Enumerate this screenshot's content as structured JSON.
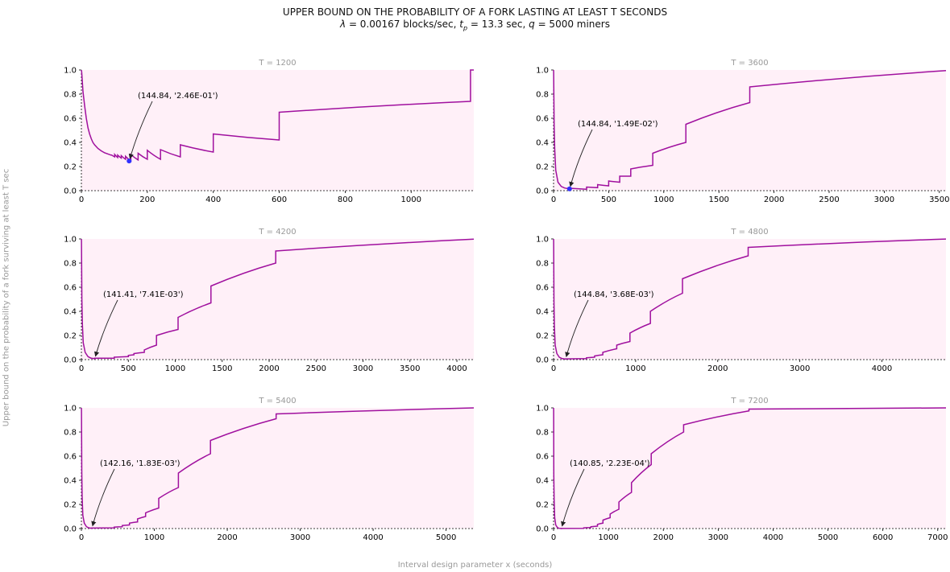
{
  "figure": {
    "title_line1": "UPPER BOUND ON THE PROBABILITY OF A FORK LASTING AT LEAST T SECONDS",
    "title_line2": {
      "lambda_sym": "λ",
      "lambda_text": " =  0.00167 blocks/sec, ",
      "tp_sym": "t",
      "tp_sub": "p",
      "tp_text": " =  13.3 sec, ",
      "q_sym": "q",
      "q_text": " =  5000 miners"
    },
    "ylabel": "Upper bound on the probability of a fork surviving at least T sec",
    "xlabel": "Interval design parameter x (seconds)"
  },
  "colors": {
    "line": "#a0109e",
    "plot_bg": "#fff0f8",
    "marker": "#3030ff",
    "title_gray": "#999999",
    "arrow": "#222222"
  },
  "chart_data": [
    {
      "type": "line",
      "title": "T = 1200",
      "xlim": [
        0,
        1190
      ],
      "ylim": [
        0,
        1.0
      ],
      "xticks": [
        0,
        200,
        400,
        600,
        800,
        1000
      ],
      "yticks": [
        "0.0",
        "0.2",
        "0.4",
        "0.6",
        "0.8",
        "1.0"
      ],
      "annotation": {
        "text": "(144.84, '2.46E-01')",
        "x": 144.84,
        "y": 0.246,
        "marker": true
      },
      "min_point": [
        144.84,
        0.246
      ],
      "series_points": [
        [
          1,
          0.98
        ],
        [
          5,
          0.82
        ],
        [
          10,
          0.7
        ],
        [
          15,
          0.6
        ],
        [
          20,
          0.52
        ],
        [
          25,
          0.47
        ],
        [
          30,
          0.43
        ],
        [
          35,
          0.4
        ],
        [
          40,
          0.38
        ],
        [
          50,
          0.35
        ],
        [
          60,
          0.33
        ],
        [
          70,
          0.315
        ],
        [
          80,
          0.305
        ],
        [
          90,
          0.295
        ]
      ],
      "segments": [
        {
          "x0": 92,
          "x1": 101,
          "y0": 0.295,
          "y1": 0.28
        },
        {
          "x0": 101,
          "x1": 110,
          "y0": 0.3,
          "y1": 0.275
        },
        {
          "x0": 110,
          "x1": 121,
          "y0": 0.295,
          "y1": 0.27
        },
        {
          "x0": 121,
          "x1": 134,
          "y0": 0.29,
          "y1": 0.26
        },
        {
          "x0": 134,
          "x1": 150,
          "y0": 0.285,
          "y1": 0.246
        },
        {
          "x0": 150,
          "x1": 172,
          "y0": 0.3,
          "y1": 0.255
        },
        {
          "x0": 172,
          "x1": 200,
          "y0": 0.31,
          "y1": 0.26
        },
        {
          "x0": 200,
          "x1": 240,
          "y0": 0.335,
          "y1": 0.26
        },
        {
          "x0": 240,
          "x1": 300,
          "y0": 0.34,
          "y1": 0.28
        },
        {
          "x0": 300,
          "x1": 400,
          "y0": 0.38,
          "y1": 0.32
        },
        {
          "x0": 400,
          "x1": 600,
          "y0": 0.47,
          "y1": 0.42
        },
        {
          "x0": 600,
          "x1": 1180,
          "y0": 0.65,
          "y1": 0.74
        },
        {
          "x0": 1180,
          "x1": 1190,
          "y0": 1.0,
          "y1": 1.0
        }
      ]
    },
    {
      "type": "line",
      "title": "T = 3600",
      "xlim": [
        0,
        3560
      ],
      "ylim": [
        0,
        1.0
      ],
      "xticks": [
        0,
        500,
        1000,
        1500,
        2000,
        2500,
        3000,
        3500
      ],
      "yticks": [
        "0.0",
        "0.2",
        "0.4",
        "0.6",
        "0.8",
        "1.0"
      ],
      "annotation": {
        "text": "(144.84, '1.49E-02')",
        "x": 144.84,
        "y": 0.0149,
        "marker": true
      },
      "min_point": [
        144.84,
        0.0149
      ],
      "series_points": [
        [
          1,
          0.98
        ],
        [
          5,
          0.55
        ],
        [
          10,
          0.35
        ],
        [
          20,
          0.17
        ],
        [
          40,
          0.07
        ],
        [
          70,
          0.035
        ],
        [
          100,
          0.022
        ],
        [
          144.84,
          0.0149
        ]
      ],
      "segments": [
        {
          "x0": 145,
          "x1": 300,
          "y0": 0.02,
          "y1": 0.012
        },
        {
          "x0": 300,
          "x1": 400,
          "y0": 0.03,
          "y1": 0.025
        },
        {
          "x0": 400,
          "x1": 500,
          "y0": 0.05,
          "y1": 0.04
        },
        {
          "x0": 500,
          "x1": 600,
          "y0": 0.08,
          "y1": 0.07
        },
        {
          "x0": 600,
          "x1": 700,
          "y0": 0.12,
          "y1": 0.12
        },
        {
          "x0": 700,
          "x1": 900,
          "y0": 0.18,
          "y1": 0.21
        },
        {
          "x0": 900,
          "x1": 1200,
          "y0": 0.31,
          "y1": 0.4
        },
        {
          "x0": 1200,
          "x1": 1780,
          "y0": 0.55,
          "y1": 0.73
        },
        {
          "x0": 1780,
          "x1": 3560,
          "y0": 0.86,
          "y1": 0.995
        }
      ]
    },
    {
      "type": "line",
      "title": "T = 4200",
      "xlim": [
        0,
        4180
      ],
      "ylim": [
        0,
        1.0
      ],
      "xticks": [
        0,
        500,
        1000,
        1500,
        2000,
        2500,
        3000,
        3500,
        4000
      ],
      "yticks": [
        "0.0",
        "0.2",
        "0.4",
        "0.6",
        "0.8",
        "1.0"
      ],
      "annotation": {
        "text": "(141.41, '7.41E-03')",
        "x": 141.41,
        "y": 0.00741,
        "marker": false
      },
      "min_point": [
        141.41,
        0.00741
      ],
      "series_points": [
        [
          1,
          0.98
        ],
        [
          5,
          0.5
        ],
        [
          10,
          0.3
        ],
        [
          20,
          0.14
        ],
        [
          40,
          0.06
        ],
        [
          70,
          0.025
        ],
        [
          100,
          0.013
        ],
        [
          141.41,
          0.0074
        ]
      ],
      "segments": [
        {
          "x0": 141,
          "x1": 350,
          "y0": 0.012,
          "y1": 0.012
        },
        {
          "x0": 350,
          "x1": 500,
          "y0": 0.02,
          "y1": 0.025
        },
        {
          "x0": 500,
          "x1": 560,
          "y0": 0.035,
          "y1": 0.04
        },
        {
          "x0": 560,
          "x1": 670,
          "y0": 0.05,
          "y1": 0.06
        },
        {
          "x0": 670,
          "x1": 800,
          "y0": 0.08,
          "y1": 0.12
        },
        {
          "x0": 800,
          "x1": 1030,
          "y0": 0.2,
          "y1": 0.25
        },
        {
          "x0": 1030,
          "x1": 1380,
          "y0": 0.35,
          "y1": 0.47
        },
        {
          "x0": 1380,
          "x1": 2070,
          "y0": 0.61,
          "y1": 0.8
        },
        {
          "x0": 2070,
          "x1": 4180,
          "y0": 0.9,
          "y1": 0.998
        }
      ]
    },
    {
      "type": "line",
      "title": "T = 4800",
      "xlim": [
        0,
        4780
      ],
      "ylim": [
        0,
        1.0
      ],
      "xticks": [
        0,
        1000,
        2000,
        3000,
        4000
      ],
      "yticks": [
        "0.0",
        "0.2",
        "0.4",
        "0.6",
        "0.8",
        "1.0"
      ],
      "annotation": {
        "text": "(144.84, '3.68E-03')",
        "x": 144.84,
        "y": 0.00368,
        "marker": false
      },
      "min_point": [
        144.84,
        0.00368
      ],
      "series_points": [
        [
          1,
          0.98
        ],
        [
          5,
          0.48
        ],
        [
          10,
          0.28
        ],
        [
          20,
          0.12
        ],
        [
          40,
          0.05
        ],
        [
          70,
          0.02
        ],
        [
          100,
          0.009
        ],
        [
          144.84,
          0.0037
        ]
      ],
      "segments": [
        {
          "x0": 145,
          "x1": 400,
          "y0": 0.006,
          "y1": 0.008
        },
        {
          "x0": 400,
          "x1": 500,
          "y0": 0.015,
          "y1": 0.02
        },
        {
          "x0": 500,
          "x1": 600,
          "y0": 0.03,
          "y1": 0.04
        },
        {
          "x0": 600,
          "x1": 770,
          "y0": 0.06,
          "y1": 0.09
        },
        {
          "x0": 770,
          "x1": 930,
          "y0": 0.12,
          "y1": 0.15
        },
        {
          "x0": 930,
          "x1": 1180,
          "y0": 0.22,
          "y1": 0.3
        },
        {
          "x0": 1180,
          "x1": 1570,
          "y0": 0.4,
          "y1": 0.55
        },
        {
          "x0": 1570,
          "x1": 2370,
          "y0": 0.67,
          "y1": 0.86
        },
        {
          "x0": 2370,
          "x1": 4780,
          "y0": 0.93,
          "y1": 0.999
        }
      ]
    },
    {
      "type": "line",
      "title": "T = 5400",
      "xlim": [
        0,
        5380
      ],
      "ylim": [
        0,
        1.0
      ],
      "xticks": [
        0,
        1000,
        2000,
        3000,
        4000,
        5000
      ],
      "yticks": [
        "0.0",
        "0.2",
        "0.4",
        "0.6",
        "0.8",
        "1.0"
      ],
      "annotation": {
        "text": "(142.16, '1.83E-03')",
        "x": 142.16,
        "y": 0.00183,
        "marker": false
      },
      "min_point": [
        142.16,
        0.00183
      ],
      "series_points": [
        [
          1,
          0.98
        ],
        [
          5,
          0.47
        ],
        [
          10,
          0.27
        ],
        [
          20,
          0.11
        ],
        [
          40,
          0.045
        ],
        [
          70,
          0.016
        ],
        [
          100,
          0.006
        ],
        [
          142.16,
          0.0018
        ]
      ],
      "segments": [
        {
          "x0": 142,
          "x1": 450,
          "y0": 0.004,
          "y1": 0.006
        },
        {
          "x0": 450,
          "x1": 560,
          "y0": 0.012,
          "y1": 0.015
        },
        {
          "x0": 560,
          "x1": 660,
          "y0": 0.025,
          "y1": 0.03
        },
        {
          "x0": 660,
          "x1": 770,
          "y0": 0.045,
          "y1": 0.055
        },
        {
          "x0": 770,
          "x1": 880,
          "y0": 0.08,
          "y1": 0.1
        },
        {
          "x0": 880,
          "x1": 1060,
          "y0": 0.13,
          "y1": 0.17
        },
        {
          "x0": 1060,
          "x1": 1330,
          "y0": 0.25,
          "y1": 0.34
        },
        {
          "x0": 1330,
          "x1": 1770,
          "y0": 0.46,
          "y1": 0.62
        },
        {
          "x0": 1770,
          "x1": 2670,
          "y0": 0.73,
          "y1": 0.91
        },
        {
          "x0": 2670,
          "x1": 5380,
          "y0": 0.95,
          "y1": 1.0
        }
      ]
    },
    {
      "type": "line",
      "title": "T = 7200",
      "xlim": [
        0,
        7150
      ],
      "ylim": [
        0,
        1.0
      ],
      "xticks": [
        0,
        1000,
        2000,
        3000,
        4000,
        5000,
        6000,
        7000
      ],
      "yticks": [
        "0.0",
        "0.2",
        "0.4",
        "0.6",
        "0.8",
        "1.0"
      ],
      "annotation": {
        "text": "(140.85, '2.23E-04')",
        "x": 140.85,
        "y": 0.000223,
        "marker": false
      },
      "min_point": [
        140.85,
        0.000223
      ],
      "series_points": [
        [
          1,
          0.98
        ],
        [
          5,
          0.44
        ],
        [
          10,
          0.24
        ],
        [
          20,
          0.09
        ],
        [
          40,
          0.03
        ],
        [
          70,
          0.008
        ],
        [
          100,
          0.002
        ],
        [
          140.85,
          0.0002
        ]
      ],
      "segments": [
        {
          "x0": 141,
          "x1": 550,
          "y0": 0.001,
          "y1": 0.002
        },
        {
          "x0": 550,
          "x1": 680,
          "y0": 0.006,
          "y1": 0.008
        },
        {
          "x0": 680,
          "x1": 800,
          "y0": 0.015,
          "y1": 0.02
        },
        {
          "x0": 800,
          "x1": 900,
          "y0": 0.035,
          "y1": 0.045
        },
        {
          "x0": 900,
          "x1": 1030,
          "y0": 0.07,
          "y1": 0.09
        },
        {
          "x0": 1030,
          "x1": 1190,
          "y0": 0.12,
          "y1": 0.16
        },
        {
          "x0": 1190,
          "x1": 1420,
          "y0": 0.22,
          "y1": 0.3
        },
        {
          "x0": 1420,
          "x1": 1780,
          "y0": 0.38,
          "y1": 0.53
        },
        {
          "x0": 1780,
          "x1": 2370,
          "y0": 0.62,
          "y1": 0.8
        },
        {
          "x0": 2370,
          "x1": 3560,
          "y0": 0.86,
          "y1": 0.975
        },
        {
          "x0": 3560,
          "x1": 7150,
          "y0": 0.99,
          "y1": 1.0
        }
      ]
    }
  ]
}
